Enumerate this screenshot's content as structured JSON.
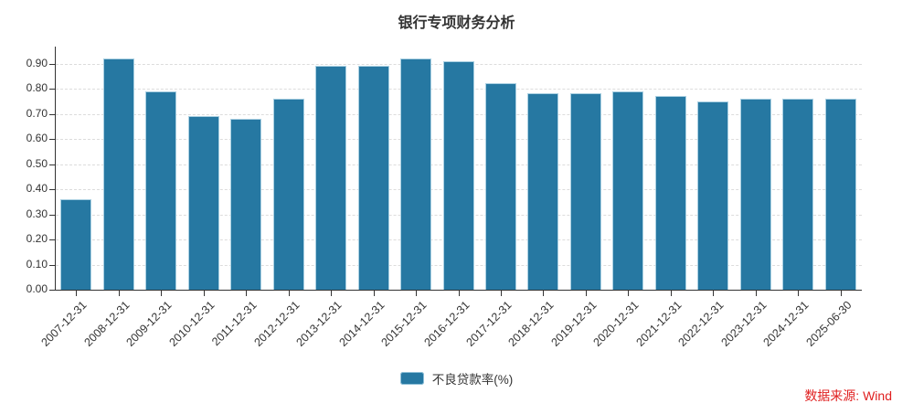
{
  "title": "银行专项财务分析",
  "legend": {
    "label": "不良贷款率(%)"
  },
  "source_note": "数据来源: Wind",
  "colors": {
    "bar_fill": "#2678a2",
    "bar_border": "#aad0e2",
    "axis": "#333333",
    "grid": "#dcdcdc",
    "text": "#333333",
    "source_red": "#e02020"
  },
  "chart_data": {
    "type": "bar",
    "title": "银行专项财务分析",
    "series": [
      {
        "name": "不良贷款率(%)",
        "values": [
          0.36,
          0.92,
          0.79,
          0.69,
          0.68,
          0.76,
          0.89,
          0.89,
          0.92,
          0.91,
          0.82,
          0.78,
          0.78,
          0.79,
          0.77,
          0.75,
          0.76,
          0.76,
          0.76
        ]
      }
    ],
    "categories": [
      "2007-12-31",
      "2008-12-31",
      "2009-12-31",
      "2010-12-31",
      "2011-12-31",
      "2012-12-31",
      "2013-12-31",
      "2014-12-31",
      "2015-12-31",
      "2016-12-31",
      "2017-12-31",
      "2018-12-31",
      "2019-12-31",
      "2020-12-31",
      "2021-12-31",
      "2022-12-31",
      "2023-12-31",
      "2024-12-31",
      "2025-06-30"
    ],
    "xlabel": "",
    "ylabel": "",
    "ylim": [
      0,
      0.967
    ],
    "y_tick_labels": [
      "0.00",
      "0.10",
      "0.20",
      "0.30",
      "0.40",
      "0.50",
      "0.60",
      "0.70",
      "0.80",
      "0.90"
    ],
    "y_tick_values": [
      0,
      0.1,
      0.2,
      0.3,
      0.4,
      0.5,
      0.6,
      0.7,
      0.8,
      0.9
    ],
    "grid": "horizontal-dashed",
    "legend_position": "bottom"
  }
}
